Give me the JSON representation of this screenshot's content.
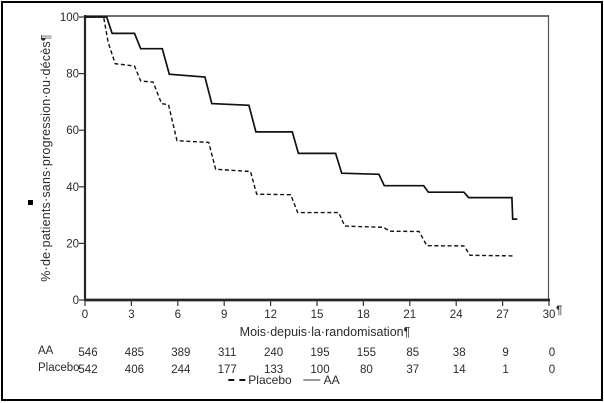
{
  "colors": {
    "curve": "#111111",
    "axis_dark": "#262626",
    "axis_light": "#4a4a4a",
    "legend_solid_sample": "#999999"
  },
  "chart_data": {
    "type": "line",
    "subtype": "kaplan-meier-step",
    "title": "",
    "xlabel": "Mois·depuis·la·randomisation¶",
    "ylabel": "%·de·patients·sans·progression·ou·décès¶",
    "trailing_pilcrow": "¶",
    "xlim": [
      0,
      30
    ],
    "ylim": [
      0,
      100
    ],
    "x_ticks": [
      0,
      3,
      6,
      9,
      12,
      15,
      18,
      21,
      24,
      27,
      30
    ],
    "y_ticks": [
      0,
      20,
      40,
      60,
      80,
      100
    ],
    "grid": false,
    "legend_position": "bottom-center",
    "series": [
      {
        "name": "AA",
        "style": "solid",
        "points": [
          [
            0,
            100
          ],
          [
            1.4,
            100
          ],
          [
            1.75,
            94.2
          ],
          [
            3.2,
            94.2
          ],
          [
            3.6,
            88.8
          ],
          [
            5.0,
            88.8
          ],
          [
            5.45,
            79.8
          ],
          [
            7.75,
            78.8
          ],
          [
            8.2,
            69.4
          ],
          [
            10.6,
            68.8
          ],
          [
            11.05,
            59.4
          ],
          [
            13.4,
            59.4
          ],
          [
            13.8,
            51.8
          ],
          [
            16.2,
            51.8
          ],
          [
            16.6,
            44.8
          ],
          [
            19.0,
            44.4
          ],
          [
            19.35,
            40.4
          ],
          [
            21.9,
            40.4
          ],
          [
            22.2,
            38.1
          ],
          [
            24.5,
            38.1
          ],
          [
            24.8,
            36.2
          ],
          [
            27.6,
            36.2
          ],
          [
            27.65,
            28.6
          ],
          [
            27.95,
            28.6
          ]
        ]
      },
      {
        "name": "Placebo",
        "style": "dashed",
        "points": [
          [
            0,
            100
          ],
          [
            1.2,
            100
          ],
          [
            1.5,
            91.0
          ],
          [
            1.95,
            83.5
          ],
          [
            3.2,
            82.7
          ],
          [
            3.6,
            77.4
          ],
          [
            4.4,
            77.0
          ],
          [
            4.95,
            69.4
          ],
          [
            5.4,
            69.0
          ],
          [
            5.95,
            56.3
          ],
          [
            8.0,
            55.7
          ],
          [
            8.45,
            46.2
          ],
          [
            10.7,
            45.4
          ],
          [
            11.1,
            37.4
          ],
          [
            13.3,
            37.2
          ],
          [
            13.75,
            30.9
          ],
          [
            16.4,
            30.9
          ],
          [
            16.8,
            26.1
          ],
          [
            19.3,
            25.7
          ],
          [
            19.7,
            24.3
          ],
          [
            21.6,
            24.2
          ],
          [
            22.1,
            19.2
          ],
          [
            24.5,
            19.1
          ],
          [
            24.9,
            15.8
          ],
          [
            27.7,
            15.6
          ]
        ]
      }
    ],
    "at_risk": {
      "months": [
        0,
        3,
        6,
        9,
        12,
        15,
        18,
        21,
        24,
        27,
        30
      ],
      "rows": [
        {
          "label": "AA",
          "counts": [
            546,
            485,
            389,
            311,
            240,
            195,
            155,
            85,
            38,
            9,
            0
          ]
        },
        {
          "label": "Placebo",
          "counts": [
            542,
            406,
            244,
            177,
            133,
            100,
            80,
            37,
            14,
            1,
            0
          ]
        }
      ]
    },
    "legend": [
      {
        "label": "Placebo",
        "style": "dashed"
      },
      {
        "label": "AA",
        "style": "solid"
      }
    ]
  }
}
